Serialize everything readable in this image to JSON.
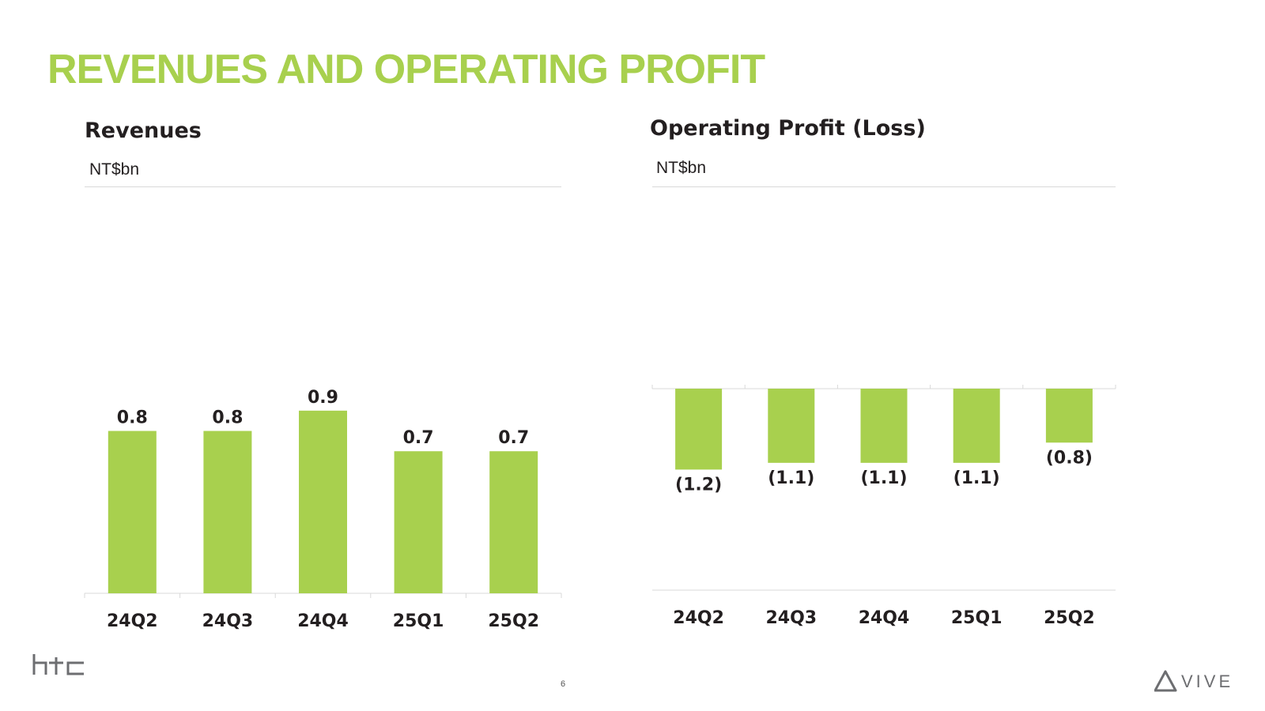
{
  "slide": {
    "title": "REVENUES AND OPERATING PROFIT",
    "page_number": "6",
    "logos": {
      "left": "htc",
      "right": "VIVE"
    }
  },
  "colors": {
    "accent": "#a8d04e",
    "bar": "#a8d04e",
    "text": "#231f20",
    "axis": "#d9d9d9"
  },
  "chart_data": [
    {
      "type": "bar",
      "title": "Revenues",
      "unit": "NT$bn",
      "categories": [
        "24Q2",
        "24Q3",
        "24Q4",
        "25Q1",
        "25Q2"
      ],
      "values": [
        0.8,
        0.8,
        0.9,
        0.7,
        0.7
      ],
      "labels": [
        "0.8",
        "0.8",
        "0.9",
        "0.7",
        "0.7"
      ],
      "ylim": [
        0,
        1.6
      ],
      "grid": false
    },
    {
      "type": "bar",
      "title": "Operating Profit (Loss)",
      "unit": "NT$bn",
      "categories": [
        "24Q2",
        "24Q3",
        "24Q4",
        "25Q1",
        "25Q2"
      ],
      "values": [
        -1.2,
        -1.1,
        -1.1,
        -1.1,
        -0.8
      ],
      "labels": [
        "(1.2)",
        "(1.1)",
        "(1.1)",
        "(1.1)",
        "(0.8)"
      ],
      "ylim": [
        -3.0,
        0
      ],
      "grid": false
    }
  ]
}
